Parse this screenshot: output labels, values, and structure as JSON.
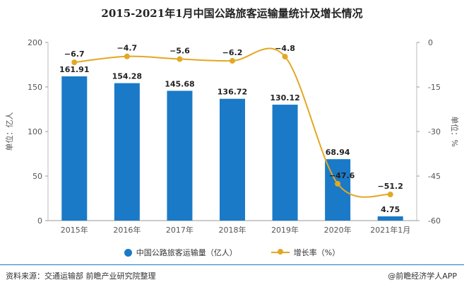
{
  "title": "2015-2021年1月中国公路旅客运输量统计及增长情况",
  "footer": {
    "source": "资料来源：交通运输部 前瞻产业研究院整理",
    "brand": "@前瞻经济学人APP",
    "brand_icon": "copyright-icon"
  },
  "colors": {
    "bar": "#1a7ac7",
    "line": "#e3a823"
  },
  "chart_data": {
    "type": "bar",
    "categories": [
      "2015年",
      "2016年",
      "2017年",
      "2018年",
      "2019年",
      "2020年",
      "2021年1月"
    ],
    "series": [
      {
        "name": "中国公路旅客运输量（亿人）",
        "type": "bar",
        "axis": "left",
        "values": [
          161.91,
          154.28,
          145.68,
          136.72,
          130.12,
          68.94,
          4.75
        ]
      },
      {
        "name": "增长率（%）",
        "type": "line",
        "axis": "right",
        "values": [
          -6.7,
          -4.7,
          -5.6,
          -6.2,
          -4.8,
          -47.6,
          -51.2
        ]
      }
    ],
    "bar_labels": [
      "161.91",
      "154.28",
      "145.68",
      "136.72",
      "130.12",
      "68.94",
      "4.75"
    ],
    "line_labels": [
      "−6.7",
      "−4.7",
      "−5.6",
      "−6.2",
      "−4.8",
      "−47.6",
      "−51.2"
    ],
    "ylabel": "单位：亿人",
    "ylabel_right": "单位：%",
    "ylim": [
      0,
      200
    ],
    "ylim_right": [
      -60,
      0
    ],
    "yticks": [
      "0",
      "50",
      "100",
      "150",
      "200"
    ],
    "yticks_right": [
      "-60",
      "-45",
      "-30",
      "-15",
      "0"
    ],
    "legend_position": "bottom",
    "grid": false
  }
}
